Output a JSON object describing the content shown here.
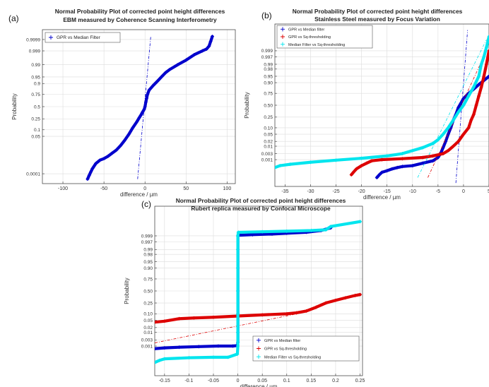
{
  "chart_data": [
    {
      "panel_label": "(a)",
      "type": "scatter",
      "title": "Normal Probability Plot of corrected point height differences",
      "subtitle": "EBM measured by Coherence Scanning Interferometry",
      "xlabel": "difference / µm",
      "ylabel": "Probability",
      "xlim": [
        -125,
        110
      ],
      "xticks": [
        -100,
        -50,
        0,
        50,
        100
      ],
      "yticks": [
        0.0001,
        0.05,
        0.1,
        0.25,
        0.5,
        0.75,
        0.9,
        0.95,
        0.99,
        0.999,
        0.9999
      ],
      "ytick_labels": [
        "0.0001",
        "0.05",
        "0.1",
        "0.25",
        "0.5",
        "0.75",
        "0.9",
        "0.95",
        "0.99",
        "0.999",
        "0.9999"
      ],
      "legend_position": "top-left",
      "grid": true,
      "series": [
        {
          "name": "GPR vs Median Filter",
          "color": "#0000cc",
          "points": [
            [
              -70,
              3e-05
            ],
            [
              -68,
              7e-05
            ],
            [
              -66,
              0.00015
            ],
            [
              -64,
              0.0003
            ],
            [
              -60,
              0.0008
            ],
            [
              -55,
              0.0015
            ],
            [
              -50,
              0.002
            ],
            [
              -45,
              0.003
            ],
            [
              -40,
              0.005
            ],
            [
              -35,
              0.008
            ],
            [
              -30,
              0.015
            ],
            [
              -25,
              0.03
            ],
            [
              -20,
              0.06
            ],
            [
              -15,
              0.12
            ],
            [
              -10,
              0.2
            ],
            [
              -7,
              0.27
            ],
            [
              -5,
              0.32
            ],
            [
              -3,
              0.38
            ],
            [
              -1,
              0.44
            ],
            [
              0,
              0.5
            ],
            [
              1,
              0.6
            ],
            [
              2,
              0.68
            ],
            [
              3,
              0.75
            ],
            [
              5,
              0.82
            ],
            [
              10,
              0.88
            ],
            [
              15,
              0.92
            ],
            [
              20,
              0.95
            ],
            [
              25,
              0.97
            ],
            [
              30,
              0.98
            ],
            [
              40,
              0.99
            ],
            [
              50,
              0.995
            ],
            [
              60,
              0.998
            ],
            [
              70,
              0.999
            ],
            [
              75,
              0.9993
            ],
            [
              78,
              0.9996
            ],
            [
              80,
              0.99985
            ],
            [
              82,
              0.99995
            ]
          ],
          "reference_line": [
            [
              -9,
              3e-05
            ],
            [
              7,
              0.99995
            ]
          ]
        }
      ]
    },
    {
      "panel_label": "(b)",
      "type": "scatter",
      "title": "Normal Probability Plot of corrected point height differences",
      "subtitle": "Stainless Steel measured by Focus Variation",
      "xlabel": "difference / µm",
      "ylabel": "Probability",
      "xlim": [
        -37,
        5
      ],
      "xticks": [
        -35,
        -30,
        -25,
        -20,
        -15,
        -10,
        -5,
        0,
        5
      ],
      "yticks": [
        0.001,
        0.003,
        0.01,
        0.02,
        0.05,
        0.1,
        0.25,
        0.5,
        0.75,
        0.9,
        0.95,
        0.98,
        0.99,
        0.997,
        0.999
      ],
      "ytick_labels": [
        "0.001",
        "0.003",
        "0.01",
        "0.02",
        "0.05",
        "0.10",
        "0.25",
        "0.50",
        "0.75",
        "0.90",
        "0.95",
        "0.98",
        "0.99",
        "0.997",
        "0.999"
      ],
      "legend_position": "top-left",
      "grid": true,
      "series": [
        {
          "name": "GPR vs Median filter",
          "color": "#0000cc",
          "points": [
            [
              -17,
              2e-05
            ],
            [
              -16.5,
              4e-05
            ],
            [
              -16,
              7e-05
            ],
            [
              -15,
              0.0001
            ],
            [
              -14,
              0.00015
            ],
            [
              -13,
              0.0002
            ],
            [
              -12,
              0.00025
            ],
            [
              -10,
              0.0003
            ],
            [
              -8,
              0.0005
            ],
            [
              -6,
              0.0008
            ],
            [
              -5,
              0.0015
            ],
            [
              -4.5,
              0.003
            ],
            [
              -4,
              0.008
            ],
            [
              -3.5,
              0.02
            ],
            [
              -3,
              0.05
            ],
            [
              -2.5,
              0.1
            ],
            [
              -2,
              0.2
            ],
            [
              -1.5,
              0.3
            ],
            [
              -1,
              0.45
            ],
            [
              -0.5,
              0.55
            ],
            [
              0,
              0.65
            ],
            [
              1,
              0.75
            ],
            [
              2,
              0.82
            ],
            [
              3,
              0.88
            ],
            [
              4,
              0.92
            ],
            [
              5,
              0.95
            ]
          ],
          "reference_line": [
            [
              -1.5,
              5e-06
            ],
            [
              0.8,
              0.99999
            ]
          ]
        },
        {
          "name": "GPR vs Sq-thresholding",
          "color": "#dd0000",
          "points": [
            [
              -22,
              4e-05
            ],
            [
              -21.5,
              8e-05
            ],
            [
              -21,
              0.00015
            ],
            [
              -20,
              0.0003
            ],
            [
              -19,
              0.0005
            ],
            [
              -18,
              0.0008
            ],
            [
              -16,
              0.001
            ],
            [
              -12,
              0.0012
            ],
            [
              -8,
              0.0015
            ],
            [
              -6,
              0.002
            ],
            [
              -4,
              0.003
            ],
            [
              -3,
              0.005
            ],
            [
              -2,
              0.01
            ],
            [
              -1,
              0.02
            ],
            [
              0,
              0.05
            ],
            [
              1,
              0.1
            ],
            [
              1.5,
              0.2
            ],
            [
              2,
              0.3
            ],
            [
              2.5,
              0.5
            ],
            [
              3,
              0.7
            ],
            [
              3.5,
              0.85
            ],
            [
              4,
              0.95
            ],
            [
              4.5,
              0.99
            ],
            [
              5,
              0.999
            ]
          ],
          "reference_line": [
            [
              -7,
              2e-05
            ],
            [
              4.5,
              0.999
            ]
          ]
        },
        {
          "name": "Median Filter vs Sq-thresholding",
          "color": "#00e5ee",
          "points": [
            [
              -37,
              0.0002
            ],
            [
              -36,
              0.0003
            ],
            [
              -34,
              0.0004
            ],
            [
              -30,
              0.0006
            ],
            [
              -25,
              0.0009
            ],
            [
              -20,
              0.0013
            ],
            [
              -15,
              0.002
            ],
            [
              -12,
              0.003
            ],
            [
              -10,
              0.005
            ],
            [
              -8,
              0.008
            ],
            [
              -6,
              0.015
            ],
            [
              -5,
              0.025
            ],
            [
              -4,
              0.05
            ],
            [
              -3,
              0.1
            ],
            [
              -2,
              0.2
            ],
            [
              -1,
              0.35
            ],
            [
              0,
              0.5
            ],
            [
              1,
              0.7
            ],
            [
              2,
              0.85
            ],
            [
              3,
              0.95
            ],
            [
              3.5,
              0.99
            ],
            [
              4,
              0.997
            ],
            [
              4.5,
              0.9995
            ],
            [
              5,
              0.99995
            ]
          ],
          "reference_line": [
            [
              -9,
              2e-05
            ],
            [
              4.5,
              0.9999
            ]
          ]
        }
      ]
    },
    {
      "panel_label": "(c)",
      "type": "scatter",
      "title": "Normal Probability Plot of corrected point height differences",
      "subtitle": "Rubert replica measured by Confocal Microscope",
      "xlabel": "difference / µm",
      "ylabel": "Probability",
      "xlim": [
        -0.17,
        0.255
      ],
      "xticks": [
        -0.15,
        -0.1,
        -0.05,
        0,
        0.05,
        0.1,
        0.15,
        0.2,
        0.25
      ],
      "xtick_labels": [
        "-0.15",
        "-0.1",
        "-0.05",
        "0",
        "0.05",
        "0.1",
        "0.15",
        "0.2",
        "0.25"
      ],
      "yticks": [
        0.001,
        0.003,
        0.01,
        0.02,
        0.05,
        0.1,
        0.25,
        0.5,
        0.75,
        0.9,
        0.95,
        0.98,
        0.99,
        0.997,
        0.999
      ],
      "ytick_labels": [
        "0.001",
        "0.003",
        "0.01",
        "0.02",
        "0.05",
        "0.10",
        "0.25",
        "0.50",
        "0.75",
        "0.90",
        "0.95",
        "0.98",
        "0.99",
        "0.997",
        "0.999"
      ],
      "legend_position": "bottom-right",
      "grid": true,
      "series": [
        {
          "name": "GPR vs Median filter",
          "color": "#0000cc",
          "points": [
            [
              -0.17,
              0.0006
            ],
            [
              -0.15,
              0.0007
            ],
            [
              -0.12,
              0.0008
            ],
            [
              -0.08,
              0.0009
            ],
            [
              -0.04,
              0.001
            ],
            [
              -0.01,
              0.001
            ],
            [
              -0.001,
              0.0011
            ],
            [
              0,
              0.002
            ],
            [
              0,
              0.01
            ],
            [
              0,
              0.1
            ],
            [
              0,
              0.5
            ],
            [
              0,
              0.9
            ],
            [
              0,
              0.99
            ],
            [
              0,
              0.999
            ],
            [
              0.001,
              0.9991
            ],
            [
              0.03,
              0.9992
            ],
            [
              0.07,
              0.9993
            ],
            [
              0.1,
              0.9994
            ],
            [
              0.14,
              0.9995
            ],
            [
              0.17,
              0.99965
            ],
            [
              0.19,
              0.9998
            ]
          ]
        },
        {
          "name": "GPR vs Sq-thresholding",
          "color": "#dd0000",
          "points": [
            [
              -0.17,
              0.04
            ],
            [
              -0.15,
              0.045
            ],
            [
              -0.12,
              0.06
            ],
            [
              -0.09,
              0.065
            ],
            [
              -0.05,
              0.07
            ],
            [
              0,
              0.08
            ],
            [
              0.05,
              0.09
            ],
            [
              0.1,
              0.1
            ],
            [
              0.12,
              0.11
            ],
            [
              0.14,
              0.13
            ],
            [
              0.16,
              0.18
            ],
            [
              0.18,
              0.25
            ],
            [
              0.2,
              0.3
            ],
            [
              0.22,
              0.35
            ],
            [
              0.24,
              0.4
            ],
            [
              0.25,
              0.42
            ]
          ],
          "reference_line": [
            [
              -0.17,
              0.0018
            ],
            [
              0.14,
              0.12
            ]
          ]
        },
        {
          "name": "Median Filter vs Sq-thresholding",
          "color": "#00e5ee",
          "points": [
            [
              -0.17,
              3e-05
            ],
            [
              -0.16,
              5e-05
            ],
            [
              -0.15,
              7e-05
            ],
            [
              -0.1,
              9e-05
            ],
            [
              -0.05,
              0.0001
            ],
            [
              -0.02,
              0.0001
            ],
            [
              -0.001,
              0.0002
            ],
            [
              0,
              0.001
            ],
            [
              0,
              0.01
            ],
            [
              0,
              0.1
            ],
            [
              0,
              0.5
            ],
            [
              0,
              0.9
            ],
            [
              0,
              0.99
            ],
            [
              0,
              0.999
            ],
            [
              0.001,
              0.9995
            ],
            [
              0.05,
              0.99955
            ],
            [
              0.1,
              0.9996
            ],
            [
              0.15,
              0.99965
            ],
            [
              0.18,
              0.9997
            ],
            [
              0.19,
              0.99985
            ],
            [
              0.25,
              0.99995
            ]
          ]
        }
      ]
    }
  ]
}
